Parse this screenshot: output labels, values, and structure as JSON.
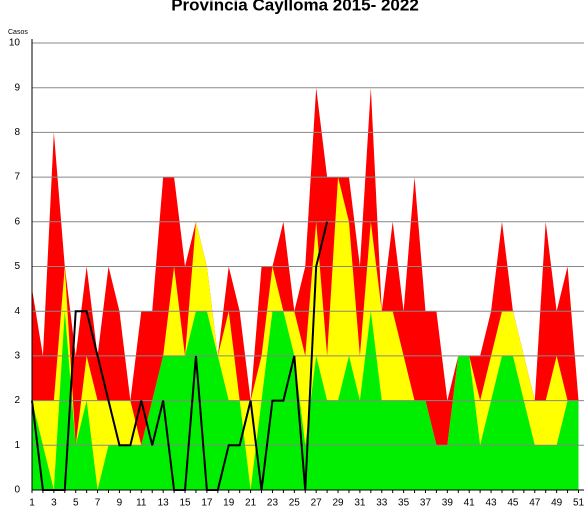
{
  "chart_data": {
    "type": "area",
    "title": "Provincia Caylloma 2015- 2022",
    "y_label": "Casos",
    "categories": [
      1,
      null,
      3,
      null,
      5,
      null,
      7,
      null,
      9,
      null,
      11,
      null,
      13,
      null,
      15,
      null,
      17,
      null,
      19,
      null,
      21,
      null,
      23,
      null,
      25,
      null,
      27,
      null,
      29,
      null,
      31,
      null,
      33,
      null,
      35,
      null,
      37,
      null,
      39,
      null,
      41,
      null,
      43,
      null,
      45,
      null,
      47,
      null,
      49,
      null,
      51
    ],
    "series": [
      {
        "color": "#ff0000",
        "values": [
          4.5,
          3,
          8,
          5,
          3,
          5,
          3,
          5,
          4,
          2,
          4,
          4,
          7,
          7,
          5,
          6,
          5,
          3,
          5,
          4,
          2,
          5,
          5,
          6,
          4,
          5,
          9,
          7,
          7,
          7,
          5,
          9,
          4,
          6,
          4,
          7,
          4,
          4,
          2,
          3,
          3,
          3,
          4,
          6,
          4,
          3,
          2,
          6,
          4,
          5,
          2
        ]
      },
      {
        "color": "#ffff00",
        "values": [
          2,
          2,
          2,
          5,
          1,
          3,
          2,
          2,
          2,
          2,
          1,
          2,
          3,
          5,
          3,
          6,
          5,
          3,
          4,
          2,
          2,
          3,
          5,
          4,
          4,
          3,
          6,
          3,
          7,
          6,
          3,
          6,
          4,
          4,
          3,
          2,
          2,
          1,
          1,
          3,
          3,
          2,
          3,
          4,
          4,
          3,
          2,
          2,
          3,
          2,
          2
        ]
      },
      {
        "color": "#00ee00",
        "values": [
          2,
          1,
          0,
          4,
          1,
          2,
          0,
          1,
          1,
          1,
          1,
          2,
          3,
          3,
          3,
          4,
          4,
          3,
          2,
          2,
          0,
          2,
          4,
          4,
          3,
          1,
          3,
          2,
          2,
          3,
          2,
          4,
          2,
          2,
          2,
          2,
          2,
          1,
          1,
          3,
          3,
          1,
          2,
          3,
          3,
          2,
          1,
          1,
          1,
          2,
          2
        ]
      },
      {
        "color": "#000000",
        "line": true,
        "values": [
          2,
          0,
          0,
          0,
          4,
          4,
          3,
          2,
          1,
          1,
          2,
          1,
          2,
          0,
          0,
          3,
          0,
          0,
          1,
          1,
          2,
          0,
          2,
          2,
          3,
          0,
          5,
          6,
          null,
          null,
          null,
          null,
          null,
          null,
          null,
          null,
          null,
          null,
          null,
          null,
          null,
          null,
          null,
          null,
          null,
          null,
          null,
          null,
          null,
          null,
          null
        ]
      }
    ],
    "ylim": [
      0,
      10
    ],
    "yticks": [
      0,
      1,
      2,
      3,
      4,
      5,
      6,
      7,
      8,
      9,
      10
    ],
    "grid": true
  }
}
